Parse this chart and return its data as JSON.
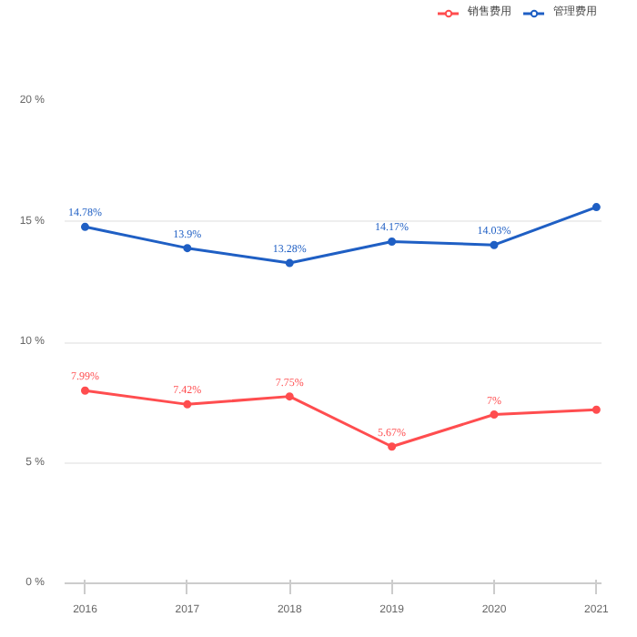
{
  "chart_data": {
    "type": "line",
    "categories": [
      "2016",
      "2017",
      "2018",
      "2019",
      "2020",
      "2021"
    ],
    "series": [
      {
        "name": "销售费用",
        "color": "#ff4d4f",
        "values": [
          7.99,
          7.42,
          7.75,
          5.67,
          7,
          7.2
        ],
        "value_labels": [
          "7.99%",
          "7.42%",
          "7.75%",
          "5.67%",
          "7%",
          null
        ]
      },
      {
        "name": "管理费用",
        "color": "#1f5fc4",
        "values": [
          14.78,
          13.9,
          13.28,
          14.17,
          14.03,
          15.6
        ],
        "value_labels": [
          "14.78%",
          "13.9%",
          "13.28%",
          "14.17%",
          "14.03%",
          null
        ]
      }
    ],
    "ylim": [
      0,
      20
    ],
    "yticks": [
      {
        "value": 0,
        "label": "0 %"
      },
      {
        "value": 5,
        "label": "5 %"
      },
      {
        "value": 10,
        "label": "10 %"
      },
      {
        "value": 15,
        "label": "15 %"
      },
      {
        "value": 20,
        "label": "20 %"
      }
    ],
    "grid": "y",
    "legend": "top right",
    "marker": "circle",
    "line_style": "solid"
  }
}
